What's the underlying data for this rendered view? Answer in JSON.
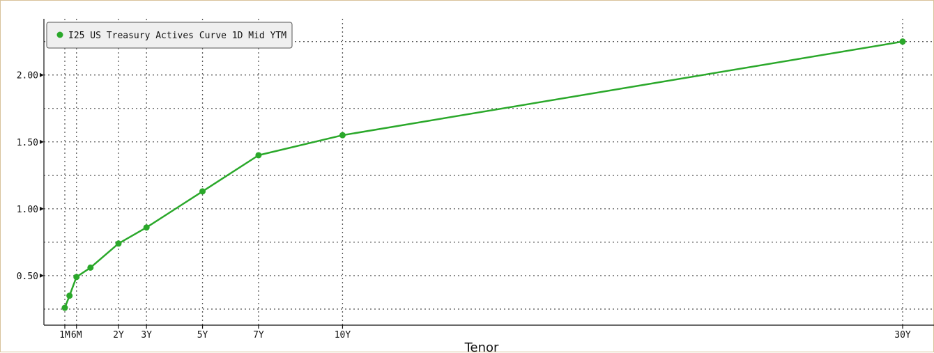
{
  "chart_data": {
    "type": "line",
    "xlabel": "Tenor",
    "ylabel": "",
    "title": "",
    "x_scale": "linear in years",
    "x_tick_labels": [
      "1M",
      "6M",
      "2Y",
      "3Y",
      "5Y",
      "7Y",
      "10Y",
      "30Y"
    ],
    "x_tick_years": [
      0.0833,
      0.5,
      2,
      3,
      5,
      7,
      10,
      30
    ],
    "y_tick_labels": [
      "0.50",
      "1.00",
      "1.50",
      "2.00"
    ],
    "y_tick_values": [
      0.5,
      1.0,
      1.5,
      2.0
    ],
    "ylim": [
      0.13,
      2.42
    ],
    "grid": true,
    "legend_position": "top-left",
    "series": [
      {
        "name": "I25 US Treasury Actives Curve 1D Mid YTM",
        "color": "#2aa82a",
        "x_years": [
          0.0833,
          0.25,
          0.5,
          1,
          2,
          3,
          5,
          7,
          10,
          30
        ],
        "y": [
          0.26,
          0.35,
          0.49,
          0.56,
          0.74,
          0.86,
          1.13,
          1.4,
          1.55,
          2.25
        ]
      }
    ]
  }
}
